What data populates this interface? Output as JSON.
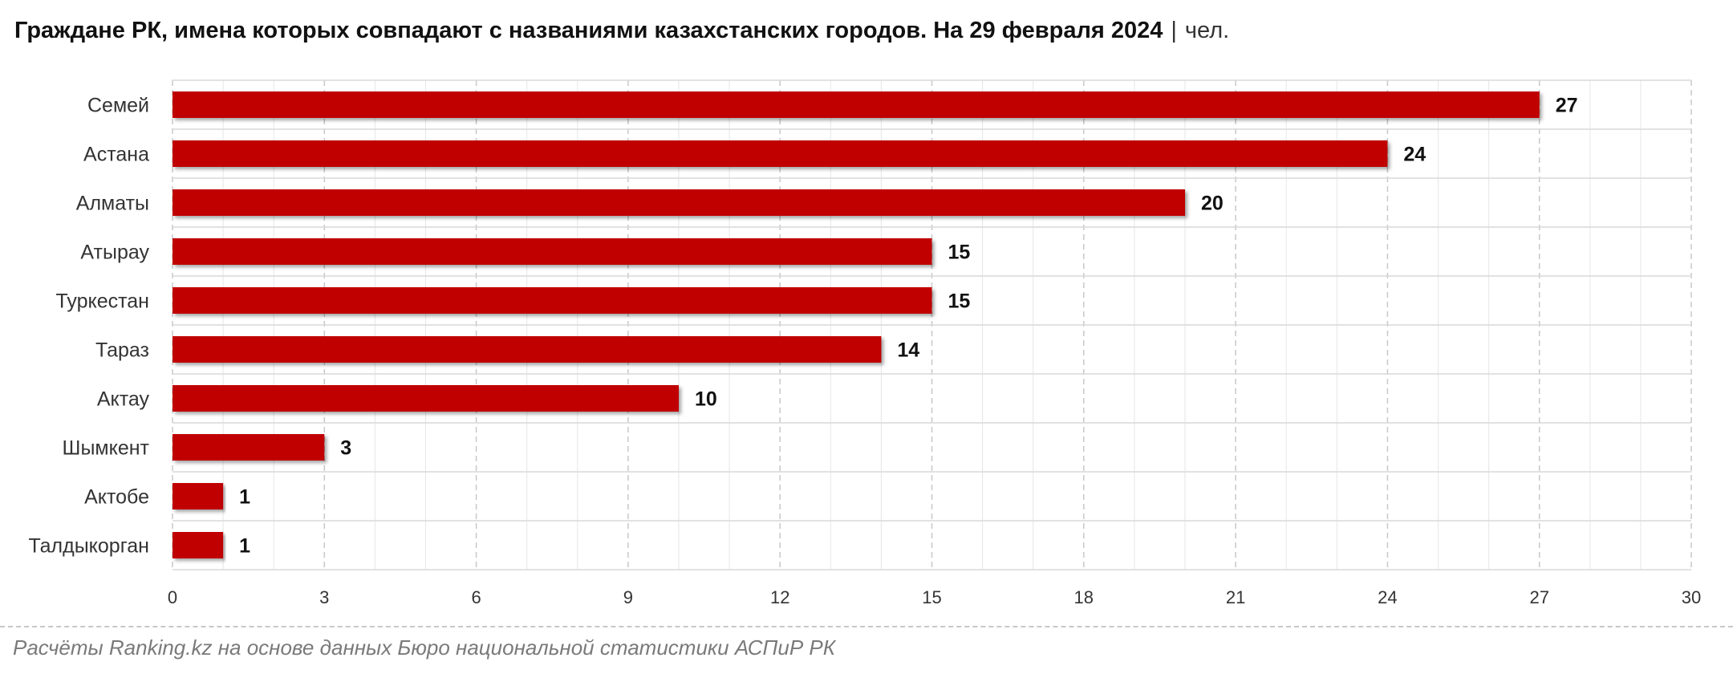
{
  "header": {
    "title": "Граждане РК, имена которых совпадают с названиями казахстанских городов. На 29 февраля 2024",
    "separator": "|",
    "unit": "чел."
  },
  "source": "Расчёты Ranking.kz на основе данных Бюро национальной статистики АСПиР РК",
  "chart_data": {
    "type": "bar",
    "orientation": "horizontal",
    "categories": [
      "Семей",
      "Астана",
      "Алматы",
      "Атырау",
      "Туркестан",
      "Тараз",
      "Актау",
      "Шымкент",
      "Актобе",
      "Талдыкорган"
    ],
    "values": [
      27,
      24,
      20,
      15,
      15,
      14,
      10,
      3,
      1,
      1
    ],
    "xlim": [
      0,
      30
    ],
    "xticks": [
      0,
      3,
      6,
      9,
      12,
      15,
      18,
      21,
      24,
      27,
      30
    ],
    "grid": true,
    "data_labels": true,
    "colors": {
      "bar": "#c00000",
      "grid_major": "#c8c8c8",
      "grid_minor": "#e6e6e6",
      "text": "#333333",
      "label": "#111111"
    }
  }
}
